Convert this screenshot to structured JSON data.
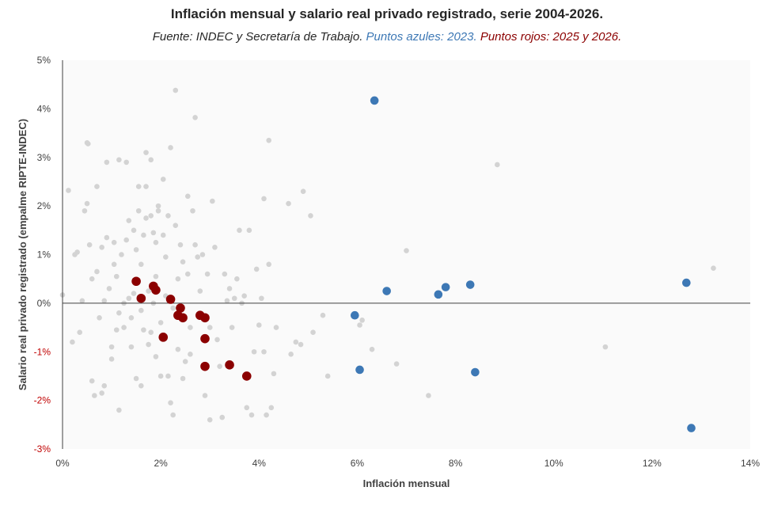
{
  "chart_data": {
    "type": "scatter",
    "title": "Inflación mensual  y salario real privado registrado, serie 2004-2026.",
    "subtitle": {
      "source": "Fuente: INDEC y Secretaría de Trabajo.",
      "blue_note": "Puntos azules: 2023.",
      "red_note": "Puntos rojos: 2025 y 2026."
    },
    "xlabel": "Inflación mensual",
    "ylabel": "Salario real privado registrado (empalme RIPTE-INDEC)",
    "xlim": [
      0,
      14
    ],
    "ylim": [
      -3,
      5
    ],
    "x_ticks": [
      0,
      2,
      4,
      6,
      8,
      10,
      12,
      14
    ],
    "y_ticks": [
      -3,
      -2,
      -1,
      0,
      1,
      2,
      3,
      4,
      5
    ],
    "x_tick_labels": [
      "0%",
      "2%",
      "4%",
      "6%",
      "8%",
      "10%",
      "12%",
      "14%"
    ],
    "y_tick_labels": [
      "-3%",
      "-2%",
      "-1%",
      "0%",
      "1%",
      "2%",
      "3%",
      "4%",
      "5%"
    ],
    "grid": false,
    "colors": {
      "other": "#d3d3d3",
      "blue": "#3d78b5",
      "red": "#8b0000",
      "plot_bg": "#fafafa",
      "negative_tick": "#c00000"
    },
    "series": [
      {
        "key": "other",
        "points": [
          [
            0.0,
            0.17
          ],
          [
            0.12,
            2.32
          ],
          [
            0.2,
            -0.8
          ],
          [
            0.25,
            1.0
          ],
          [
            0.3,
            1.05
          ],
          [
            0.35,
            -0.6
          ],
          [
            0.4,
            0.05
          ],
          [
            0.45,
            1.9
          ],
          [
            0.5,
            3.3
          ],
          [
            0.52,
            3.28
          ],
          [
            0.5,
            2.05
          ],
          [
            0.55,
            1.2
          ],
          [
            0.6,
            0.5
          ],
          [
            0.6,
            -1.6
          ],
          [
            0.65,
            -1.9
          ],
          [
            0.7,
            2.4
          ],
          [
            0.7,
            0.65
          ],
          [
            0.75,
            -0.3
          ],
          [
            0.8,
            1.15
          ],
          [
            0.8,
            -1.85
          ],
          [
            0.85,
            -1.7
          ],
          [
            0.85,
            0.05
          ],
          [
            0.9,
            2.9
          ],
          [
            0.9,
            1.35
          ],
          [
            0.95,
            0.3
          ],
          [
            1.0,
            -1.15
          ],
          [
            1.0,
            -0.9
          ],
          [
            1.05,
            1.25
          ],
          [
            1.05,
            0.8
          ],
          [
            1.1,
            -0.55
          ],
          [
            1.1,
            0.55
          ],
          [
            1.15,
            2.95
          ],
          [
            1.15,
            -0.2
          ],
          [
            1.15,
            -2.2
          ],
          [
            1.2,
            1.0
          ],
          [
            1.25,
            0.0
          ],
          [
            1.25,
            -0.5
          ],
          [
            1.3,
            1.3
          ],
          [
            1.3,
            2.9
          ],
          [
            1.35,
            1.7
          ],
          [
            1.35,
            0.1
          ],
          [
            1.4,
            -0.3
          ],
          [
            1.4,
            -0.9
          ],
          [
            1.45,
            1.5
          ],
          [
            1.45,
            0.2
          ],
          [
            1.5,
            1.1
          ],
          [
            1.5,
            -1.55
          ],
          [
            1.55,
            2.4
          ],
          [
            1.55,
            1.9
          ],
          [
            1.6,
            0.8
          ],
          [
            1.6,
            -0.15
          ],
          [
            1.6,
            -1.7
          ],
          [
            1.65,
            1.4
          ],
          [
            1.65,
            -0.55
          ],
          [
            1.7,
            1.75
          ],
          [
            1.7,
            3.1
          ],
          [
            1.7,
            2.4
          ],
          [
            1.75,
            0.25
          ],
          [
            1.75,
            -0.85
          ],
          [
            1.8,
            2.95
          ],
          [
            1.8,
            1.8
          ],
          [
            1.8,
            -0.6
          ],
          [
            1.85,
            1.45
          ],
          [
            1.85,
            0.0
          ],
          [
            1.9,
            1.25
          ],
          [
            1.9,
            0.55
          ],
          [
            1.9,
            -1.1
          ],
          [
            1.95,
            1.9
          ],
          [
            1.95,
            2.0
          ],
          [
            2.0,
            -1.5
          ],
          [
            2.0,
            -0.4
          ],
          [
            2.05,
            1.4
          ],
          [
            2.05,
            2.55
          ],
          [
            2.1,
            0.95
          ],
          [
            2.1,
            0.15
          ],
          [
            2.15,
            1.8
          ],
          [
            2.15,
            -1.5
          ],
          [
            2.2,
            3.2
          ],
          [
            2.2,
            -2.05
          ],
          [
            2.25,
            -2.3
          ],
          [
            2.25,
            -0.1
          ],
          [
            2.3,
            1.6
          ],
          [
            2.3,
            4.38
          ],
          [
            2.35,
            0.5
          ],
          [
            2.35,
            -0.95
          ],
          [
            2.4,
            1.2
          ],
          [
            2.45,
            -1.55
          ],
          [
            2.45,
            0.85
          ],
          [
            2.5,
            -1.2
          ],
          [
            2.55,
            2.2
          ],
          [
            2.55,
            0.6
          ],
          [
            2.6,
            -0.5
          ],
          [
            2.6,
            -1.05
          ],
          [
            2.65,
            1.9
          ],
          [
            2.7,
            1.2
          ],
          [
            2.7,
            3.82
          ],
          [
            2.75,
            0.95
          ],
          [
            2.8,
            0.25
          ],
          [
            2.85,
            1.0
          ],
          [
            2.9,
            -1.9
          ],
          [
            2.95,
            0.6
          ],
          [
            3.0,
            -2.4
          ],
          [
            3.0,
            -0.5
          ],
          [
            3.05,
            2.1
          ],
          [
            3.1,
            1.15
          ],
          [
            3.15,
            -0.75
          ],
          [
            3.2,
            -1.3
          ],
          [
            3.25,
            -2.35
          ],
          [
            3.3,
            0.6
          ],
          [
            3.35,
            0.05
          ],
          [
            3.4,
            0.3
          ],
          [
            3.45,
            -0.5
          ],
          [
            3.5,
            0.1
          ],
          [
            3.55,
            0.5
          ],
          [
            3.6,
            1.5
          ],
          [
            3.65,
            0.0
          ],
          [
            3.7,
            0.15
          ],
          [
            3.75,
            -2.15
          ],
          [
            3.8,
            1.5
          ],
          [
            3.85,
            -2.3
          ],
          [
            3.9,
            -1.0
          ],
          [
            3.95,
            0.7
          ],
          [
            4.0,
            -0.45
          ],
          [
            4.05,
            0.1
          ],
          [
            4.1,
            2.15
          ],
          [
            4.1,
            -1.0
          ],
          [
            4.15,
            -2.3
          ],
          [
            4.2,
            3.35
          ],
          [
            4.2,
            0.8
          ],
          [
            4.25,
            -2.15
          ],
          [
            4.3,
            -1.45
          ],
          [
            4.35,
            -0.5
          ],
          [
            4.6,
            2.05
          ],
          [
            4.65,
            -1.05
          ],
          [
            4.75,
            -0.8
          ],
          [
            4.85,
            -0.85
          ],
          [
            4.9,
            2.3
          ],
          [
            5.05,
            1.8
          ],
          [
            5.1,
            -0.6
          ],
          [
            5.3,
            -0.25
          ],
          [
            5.4,
            -1.5
          ],
          [
            6.05,
            -0.45
          ],
          [
            6.1,
            -0.35
          ],
          [
            6.3,
            -0.95
          ],
          [
            6.8,
            -1.25
          ],
          [
            7.0,
            1.08
          ],
          [
            7.45,
            -1.9
          ],
          [
            8.85,
            2.85
          ],
          [
            11.05,
            -0.9
          ],
          [
            13.25,
            0.72
          ]
        ]
      },
      {
        "key": "blue",
        "points": [
          [
            6.35,
            4.17
          ],
          [
            5.95,
            -0.25
          ],
          [
            6.05,
            -1.37
          ],
          [
            6.6,
            0.25
          ],
          [
            7.65,
            0.18
          ],
          [
            7.8,
            0.33
          ],
          [
            8.3,
            0.38
          ],
          [
            8.4,
            -1.42
          ],
          [
            12.7,
            0.42
          ],
          [
            12.8,
            -2.57
          ]
        ]
      },
      {
        "key": "red",
        "points": [
          [
            1.5,
            0.45
          ],
          [
            1.6,
            0.1
          ],
          [
            1.85,
            0.35
          ],
          [
            1.9,
            0.27
          ],
          [
            2.05,
            -0.7
          ],
          [
            2.2,
            0.08
          ],
          [
            2.35,
            -0.25
          ],
          [
            2.45,
            -0.3
          ],
          [
            2.4,
            -0.1
          ],
          [
            2.8,
            -0.25
          ],
          [
            2.9,
            -0.3
          ],
          [
            2.9,
            -0.73
          ],
          [
            2.9,
            -1.3
          ],
          [
            3.4,
            -1.27
          ],
          [
            3.75,
            -1.5
          ]
        ]
      }
    ]
  }
}
